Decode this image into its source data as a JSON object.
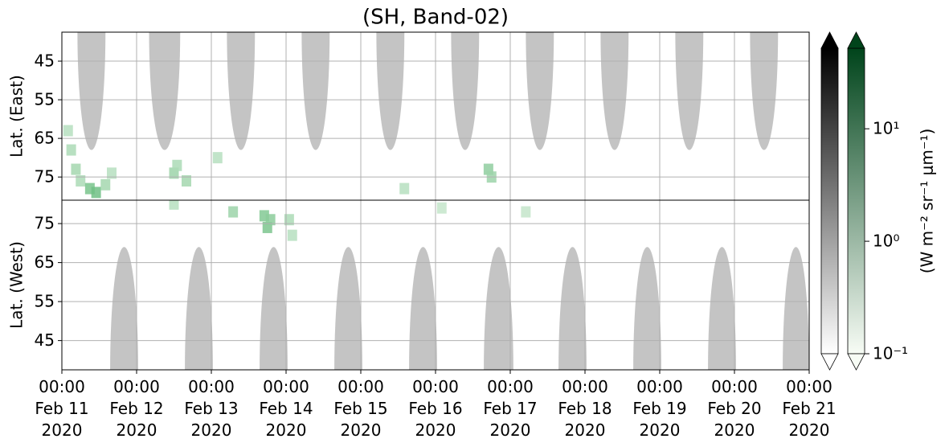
{
  "chart_data": {
    "type": "heatmap",
    "title": "(SH, Band-02)",
    "xlim": [
      "2020-02-11T00:00",
      "2020-02-21T00:00"
    ],
    "xticks": [
      {
        "value": "2020-02-11T00:00",
        "label": "00:00\nFeb 11\n2020"
      },
      {
        "value": "2020-02-12T00:00",
        "label": "00:00\nFeb 12\n2020"
      },
      {
        "value": "2020-02-13T00:00",
        "label": "00:00\nFeb 13\n2020"
      },
      {
        "value": "2020-02-14T00:00",
        "label": "00:00\nFeb 14\n2020"
      },
      {
        "value": "2020-02-15T00:00",
        "label": "00:00\nFeb 15\n2020"
      },
      {
        "value": "2020-02-16T00:00",
        "label": "00:00\nFeb 16\n2020"
      },
      {
        "value": "2020-02-17T00:00",
        "label": "00:00\nFeb 17\n2020"
      },
      {
        "value": "2020-02-18T00:00",
        "label": "00:00\nFeb 18\n2020"
      },
      {
        "value": "2020-02-19T00:00",
        "label": "00:00\nFeb 19\n2020"
      },
      {
        "value": "2020-02-20T00:00",
        "label": "00:00\nFeb 20\n2020"
      },
      {
        "value": "2020-02-21T00:00",
        "label": "00:00\nFeb 21\n2020"
      }
    ],
    "grid": true,
    "panels": [
      {
        "ylabel": "Lat. (East)",
        "ylim": [
          37.5,
          81
        ],
        "yticks": [
          45,
          55,
          65,
          75
        ],
        "night_color": "#c4c4c4",
        "night": [
          {
            "x0": "2020-02-11T05:00",
            "x1": "2020-02-11T14:00",
            "lat": 68
          },
          {
            "x0": "2020-02-12T04:00",
            "x1": "2020-02-12T14:00",
            "lat": 68
          },
          {
            "x0": "2020-02-13T05:00",
            "x1": "2020-02-13T14:00",
            "lat": 68
          },
          {
            "x0": "2020-02-14T05:00",
            "x1": "2020-02-14T14:00",
            "lat": 68
          },
          {
            "x0": "2020-02-15T05:00",
            "x1": "2020-02-15T14:00",
            "lat": 68
          },
          {
            "x0": "2020-02-16T05:00",
            "x1": "2020-02-16T14:00",
            "lat": 68
          },
          {
            "x0": "2020-02-17T05:00",
            "x1": "2020-02-17T14:00",
            "lat": 68
          },
          {
            "x0": "2020-02-18T05:00",
            "x1": "2020-02-18T14:00",
            "lat": 68
          },
          {
            "x0": "2020-02-19T05:00",
            "x1": "2020-02-19T14:00",
            "lat": 68
          },
          {
            "x0": "2020-02-20T05:00",
            "x1": "2020-02-20T14:00",
            "lat": 68
          }
        ],
        "cells": [
          {
            "x": "2020-02-11T02:00",
            "lat": 63,
            "value": 0.4
          },
          {
            "x": "2020-02-11T03:00",
            "lat": 68,
            "value": 0.5
          },
          {
            "x": "2020-02-11T04:30",
            "lat": 73,
            "value": 0.6
          },
          {
            "x": "2020-02-11T06:00",
            "lat": 76,
            "value": 0.5
          },
          {
            "x": "2020-02-11T09:00",
            "lat": 78,
            "value": 1.5
          },
          {
            "x": "2020-02-11T11:00",
            "lat": 79,
            "value": 1.8
          },
          {
            "x": "2020-02-11T14:00",
            "lat": 77,
            "value": 0.6
          },
          {
            "x": "2020-02-11T16:00",
            "lat": 74,
            "value": 0.4
          },
          {
            "x": "2020-02-12T12:00",
            "lat": 74,
            "value": 0.7
          },
          {
            "x": "2020-02-12T13:00",
            "lat": 72,
            "value": 0.5
          },
          {
            "x": "2020-02-12T16:00",
            "lat": 76,
            "value": 0.6
          },
          {
            "x": "2020-02-13T02:00",
            "lat": 70,
            "value": 0.4
          },
          {
            "x": "2020-02-15T14:00",
            "lat": 78,
            "value": 0.4
          },
          {
            "x": "2020-02-16T17:00",
            "lat": 73,
            "value": 0.9
          },
          {
            "x": "2020-02-16T18:00",
            "lat": 75,
            "value": 0.7
          }
        ]
      },
      {
        "ylabel": "Lat. (West)",
        "ylim": [
          81,
          37.5
        ],
        "yticks": [
          75,
          65,
          55,
          45
        ],
        "night_color": "#c4c4c4",
        "night": [
          {
            "x0": "2020-02-11T15:30",
            "x1": "2020-02-12T00:30",
            "lat": 69
          },
          {
            "x0": "2020-02-12T15:30",
            "x1": "2020-02-13T00:30",
            "lat": 69
          },
          {
            "x0": "2020-02-13T15:30",
            "x1": "2020-02-14T00:30",
            "lat": 69
          },
          {
            "x0": "2020-02-14T15:30",
            "x1": "2020-02-15T00:30",
            "lat": 69
          },
          {
            "x0": "2020-02-15T15:30",
            "x1": "2020-02-16T00:30",
            "lat": 69
          },
          {
            "x0": "2020-02-16T15:30",
            "x1": "2020-02-17T01:00",
            "lat": 69
          },
          {
            "x0": "2020-02-17T15:30",
            "x1": "2020-02-18T00:30",
            "lat": 69
          },
          {
            "x0": "2020-02-18T15:30",
            "x1": "2020-02-19T00:30",
            "lat": 69
          },
          {
            "x0": "2020-02-19T15:30",
            "x1": "2020-02-20T00:30",
            "lat": 69
          },
          {
            "x0": "2020-02-20T15:30",
            "x1": "2020-02-21T00:00",
            "lat": 69
          }
        ],
        "cells": [
          {
            "x": "2020-02-12T12:00",
            "lat": 80,
            "value": 0.4
          },
          {
            "x": "2020-02-13T07:00",
            "lat": 78,
            "value": 0.7
          },
          {
            "x": "2020-02-13T17:00",
            "lat": 77,
            "value": 1.2
          },
          {
            "x": "2020-02-13T18:00",
            "lat": 74,
            "value": 1.4
          },
          {
            "x": "2020-02-13T19:00",
            "lat": 76,
            "value": 1.0
          },
          {
            "x": "2020-02-14T01:00",
            "lat": 76,
            "value": 0.5
          },
          {
            "x": "2020-02-14T02:00",
            "lat": 72,
            "value": 0.4
          },
          {
            "x": "2020-02-16T02:00",
            "lat": 79,
            "value": 0.3
          },
          {
            "x": "2020-02-17T05:00",
            "lat": 78,
            "value": 0.3
          }
        ]
      }
    ],
    "gray_colorbar": {
      "colors": [
        "#ffffff",
        "#000000"
      ]
    },
    "colorbar": {
      "label": "(W m⁻² sr⁻¹ μm⁻¹)",
      "log": true,
      "lim": [
        0.1,
        52
      ],
      "colors": [
        "#f7fcf5",
        "#00441b"
      ],
      "ticks": [
        {
          "value": 0.1,
          "label": "10⁻¹"
        },
        {
          "value": 1,
          "label": "10⁰"
        },
        {
          "value": 10,
          "label": "10¹"
        }
      ]
    }
  }
}
